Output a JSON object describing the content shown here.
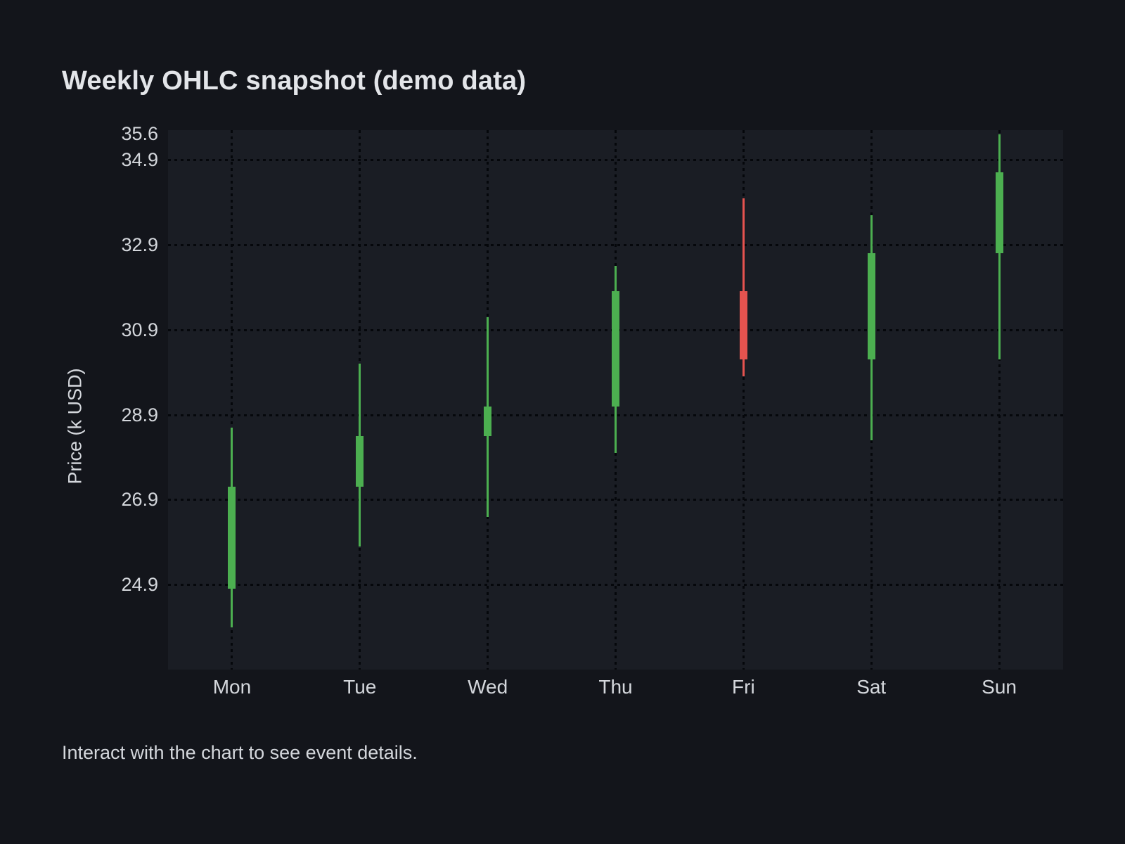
{
  "page": {
    "title": "Weekly OHLC snapshot (demo data)",
    "footer": "Interact with the chart to see event details."
  },
  "colors": {
    "page_background": "#13151b",
    "plot_background": "#1a1d24",
    "grid_dot": "#05070b",
    "title_text": "#e3e5e9",
    "axis_text": "#d4d7dc",
    "up": "#4caf50",
    "down": "#e5534f"
  },
  "chart_data": {
    "type": "candlestick",
    "title": "Weekly OHLC snapshot (demo data)",
    "xlabel": "",
    "ylabel": "Price (k USD)",
    "categories": [
      "Mon",
      "Tue",
      "Wed",
      "Thu",
      "Fri",
      "Sat",
      "Sun"
    ],
    "series": [
      {
        "name": "OHLC",
        "values": [
          {
            "open": 24.8,
            "high": 28.6,
            "low": 23.9,
            "close": 27.2
          },
          {
            "open": 27.2,
            "high": 30.1,
            "low": 25.8,
            "close": 28.4
          },
          {
            "open": 28.4,
            "high": 31.2,
            "low": 26.5,
            "close": 29.1
          },
          {
            "open": 29.1,
            "high": 32.4,
            "low": 28.0,
            "close": 31.8
          },
          {
            "open": 31.8,
            "high": 34.0,
            "low": 29.8,
            "close": 30.2
          },
          {
            "open": 30.2,
            "high": 33.6,
            "low": 28.3,
            "close": 32.7
          },
          {
            "open": 32.7,
            "high": 35.5,
            "low": 30.2,
            "close": 34.6
          }
        ]
      }
    ],
    "ylim": [
      22.9,
      35.6
    ],
    "yticks": [
      35.6,
      34.9,
      32.9,
      30.9,
      28.9,
      26.9,
      24.9
    ],
    "grid": "dotted",
    "legend": "none",
    "up_days": [
      "Mon",
      "Tue",
      "Wed",
      "Thu",
      "Sat",
      "Sun"
    ],
    "down_days": [
      "Fri"
    ]
  }
}
